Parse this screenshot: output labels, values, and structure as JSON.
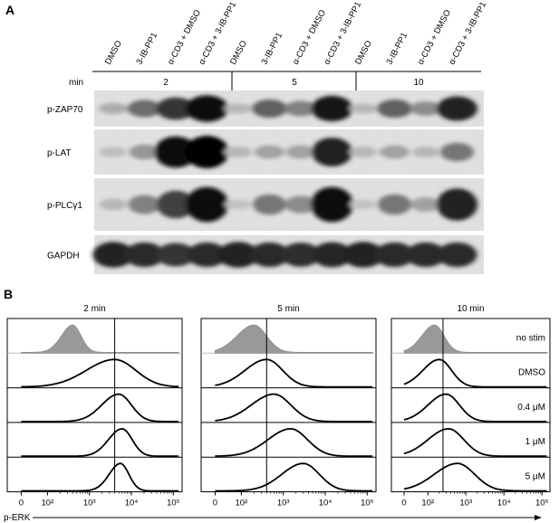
{
  "panel_a": {
    "label": "A",
    "lanes": [
      "DMSO",
      "3-IB-PP1",
      "α-CD3 + DMSO",
      "α-CD3 + 3-IB-PP1",
      "DMSO",
      "3-IB-PP1",
      "α-CD3 + DMSO",
      "α-CD3 + 3-IB-PP1",
      "DMSO",
      "3-IB-PP1",
      "α-CD3 + DMSO",
      "α-CD3 + 3-IB-PP1"
    ],
    "time_label": "min",
    "time_groups": [
      "2",
      "5",
      "10"
    ],
    "blots": [
      {
        "name": "p-ZAP70",
        "intensity": [
          0.2,
          0.5,
          0.75,
          0.95,
          0.15,
          0.55,
          0.4,
          0.9,
          0.15,
          0.55,
          0.35,
          0.85
        ]
      },
      {
        "name": "p-LAT",
        "intensity": [
          0.12,
          0.3,
          0.95,
          1.0,
          0.15,
          0.25,
          0.25,
          0.85,
          0.15,
          0.25,
          0.15,
          0.45
        ]
      },
      {
        "name": "p-PLCγ1",
        "intensity": [
          0.15,
          0.4,
          0.7,
          0.95,
          0.1,
          0.45,
          0.35,
          0.95,
          0.1,
          0.45,
          0.25,
          0.85
        ]
      },
      {
        "name": "GAPDH",
        "intensity": [
          0.85,
          0.8,
          0.75,
          0.8,
          0.85,
          0.8,
          0.78,
          0.82,
          0.85,
          0.8,
          0.8,
          0.8
        ]
      }
    ]
  },
  "panel_b": {
    "label": "B",
    "xlabel": "p-ERK",
    "row_labels": [
      "no stim",
      "DMSO",
      "0.4 μM",
      "1 μM",
      "5 μM"
    ],
    "x_ticks": [
      "0",
      "10²",
      "10³",
      "10⁴",
      "10⁵"
    ],
    "colors": {
      "nostim_fill": "#999999",
      "curve": "#000000"
    }
  },
  "chart_data": [
    {
      "type": "area",
      "title": "2 min",
      "xscale": "log",
      "x_ticks": [
        "0",
        "10²",
        "10³",
        "10⁴",
        "10⁵"
      ],
      "gate_x": 4000,
      "series": [
        {
          "name": "no stim",
          "peak_x": 400,
          "width_log": 0.2,
          "filled": true
        },
        {
          "name": "DMSO",
          "peak_x": 4000,
          "width_log": 0.5,
          "filled": false
        },
        {
          "name": "0.4 μM",
          "peak_x": 5000,
          "width_log": 0.3,
          "filled": false
        },
        {
          "name": "1 μM",
          "peak_x": 6000,
          "width_log": 0.24,
          "filled": false
        },
        {
          "name": "5 μM",
          "peak_x": 5500,
          "width_log": 0.2,
          "filled": false
        }
      ]
    },
    {
      "type": "area",
      "title": "5 min",
      "xscale": "log",
      "x_ticks": [
        "0",
        "10²",
        "10³",
        "10⁴",
        "10⁵"
      ],
      "gate_x": 400,
      "series": [
        {
          "name": "no stim",
          "peak_x": 200,
          "width_log": 0.3,
          "filled": true
        },
        {
          "name": "DMSO",
          "peak_x": 400,
          "width_log": 0.38,
          "filled": false
        },
        {
          "name": "0.4 μM",
          "peak_x": 600,
          "width_log": 0.4,
          "filled": false
        },
        {
          "name": "1 μM",
          "peak_x": 1500,
          "width_log": 0.4,
          "filled": false
        },
        {
          "name": "5 μM",
          "peak_x": 3000,
          "width_log": 0.38,
          "filled": false
        }
      ]
    },
    {
      "type": "area",
      "title": "10 min",
      "xscale": "log",
      "x_ticks": [
        "0",
        "10²",
        "10³",
        "10⁴",
        "10⁵"
      ],
      "gate_x": 250,
      "series": [
        {
          "name": "no stim",
          "peak_x": 150,
          "width_log": 0.25,
          "filled": true
        },
        {
          "name": "DMSO",
          "peak_x": 200,
          "width_log": 0.32,
          "filled": false
        },
        {
          "name": "0.4 μM",
          "peak_x": 300,
          "width_log": 0.35,
          "filled": false
        },
        {
          "name": "1 μM",
          "peak_x": 350,
          "width_log": 0.4,
          "filled": false
        },
        {
          "name": "5 μM",
          "peak_x": 600,
          "width_log": 0.45,
          "filled": false
        }
      ]
    }
  ]
}
